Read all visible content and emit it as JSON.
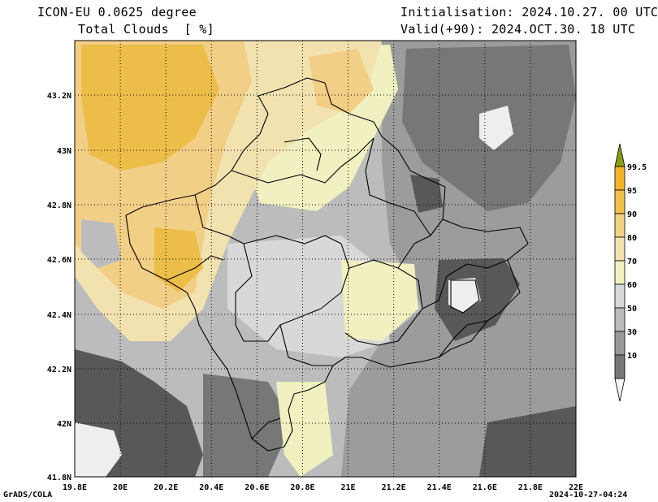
{
  "header": {
    "model": "ICON-EU 0.0625 degree",
    "field": "Total Clouds  [ %]",
    "initialisation": "Initialisation: 2024.10.27. 00 UTC",
    "valid": "Valid(+90): 2024.OCT.30. 18 UTC"
  },
  "footer": {
    "left": "GrADS/COLA",
    "right": "2024-10-27-04:24"
  },
  "axes": {
    "lon_ticks": [
      "19.8E",
      "20E",
      "20.2E",
      "20.4E",
      "20.6E",
      "20.8E",
      "21E",
      "21.2E",
      "21.4E",
      "21.6E",
      "21.8E",
      "22E"
    ],
    "lat_ticks": [
      "43.2N",
      "43N",
      "42.8N",
      "42.6N",
      "42.4N",
      "42.2N",
      "42N",
      "41.8N"
    ]
  },
  "legend": {
    "labels": [
      "99.5",
      "95",
      "90",
      "80",
      "70",
      "60",
      "50",
      "30",
      "10"
    ],
    "colors": [
      "#f2b32d",
      "#f0c050",
      "#f2d189",
      "#f2e2b0",
      "#f0f0c0",
      "#d9d9d9",
      "#bbbbbb",
      "#999999",
      "#787878",
      "#555555"
    ],
    "top_arrow_color": "#8a9a1a",
    "bottom_arrow_color": "#f5f5f5"
  },
  "map_colors": {
    "high": "#edbd4a",
    "mid_high": "#f2cf87",
    "mid": "#f2e2b0",
    "pale": "#f0f0c0",
    "light_gray": "#d8d8d8",
    "gray": "#bcbcbc",
    "mid_gray": "#9c9c9c",
    "dark_gray": "#777777",
    "darkest": "#585858",
    "clear": "#eeeeee"
  }
}
